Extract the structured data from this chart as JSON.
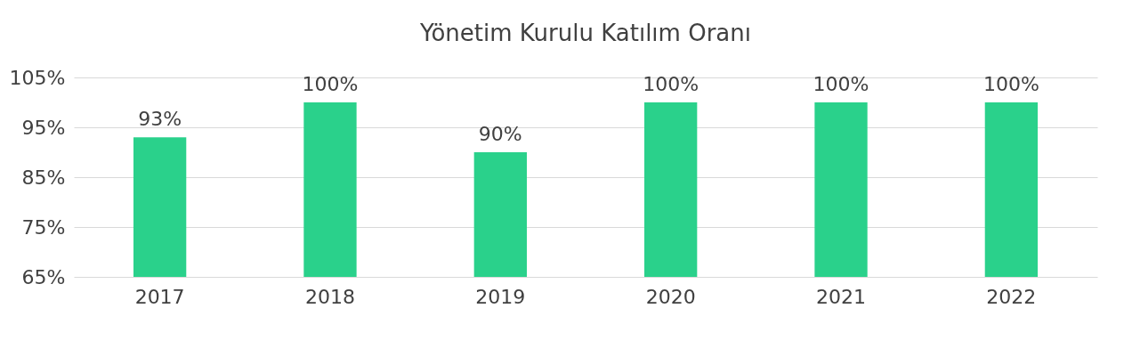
{
  "chart_data": {
    "type": "bar",
    "title": "Yönetim Kurulu Katılım Oranı",
    "categories": [
      "2017",
      "2018",
      "2019",
      "2020",
      "2021",
      "2022"
    ],
    "values": [
      93,
      100,
      90,
      100,
      100,
      100
    ],
    "value_labels": [
      "93%",
      "100%",
      "90%",
      "100%",
      "100%",
      "100%"
    ],
    "color": "#2ad18b",
    "ylim": [
      65,
      105
    ],
    "yticks": [
      {
        "value": 65,
        "label": "65%"
      },
      {
        "value": 75,
        "label": "75%"
      },
      {
        "value": 85,
        "label": "85%"
      },
      {
        "value": 95,
        "label": "95%"
      },
      {
        "value": 105,
        "label": "105%"
      }
    ],
    "grid": "y"
  }
}
